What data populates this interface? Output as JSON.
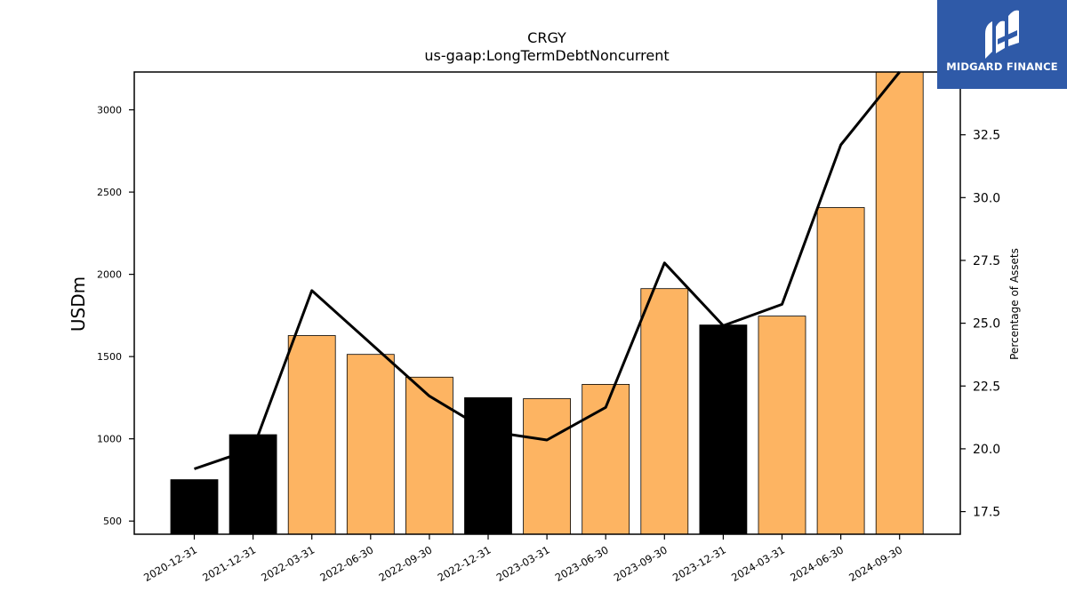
{
  "chart_data": {
    "type": "bar",
    "title": "CRGY",
    "subtitle": "us-gaap:LongTermDebtNoncurrent",
    "ylabel": "USDm",
    "y2label": "Percentage of Assets",
    "categories": [
      "2020-12-31",
      "2021-12-31",
      "2022-03-31",
      "2022-06-30",
      "2022-09-30",
      "2022-12-31",
      "2023-03-31",
      "2023-06-30",
      "2023-09-30",
      "2023-12-31",
      "2024-03-31",
      "2024-06-30",
      "2024-09-30"
    ],
    "series": [
      {
        "type": "bar",
        "axis": "left",
        "values": [
          752,
          1025,
          1628,
          1513,
          1375,
          1250,
          1244,
          1331,
          1913,
          1692,
          1746,
          2406,
          3230
        ],
        "bar_colors": [
          "#000000",
          "#000000",
          "#fdb462",
          "#fdb462",
          "#fdb462",
          "#000000",
          "#fdb462",
          "#fdb462",
          "#fdb462",
          "#000000",
          "#fdb462",
          "#fdb462",
          "#fdb462"
        ]
      },
      {
        "type": "line",
        "axis": "right",
        "color": "#000000",
        "values": [
          19.2,
          20.0,
          26.3,
          24.2,
          22.1,
          20.7,
          20.35,
          21.65,
          27.4,
          24.9,
          25.75,
          32.1,
          35.0
        ]
      }
    ],
    "ylim": [
      420,
      3230
    ],
    "y2lim": [
      16.6,
      35.0
    ],
    "yticks": [
      500,
      1000,
      1500,
      2000,
      2500,
      3000
    ],
    "y2ticks": [
      "17.5",
      "20.0",
      "22.5",
      "25.0",
      "27.5",
      "30.0",
      "32.5"
    ],
    "grid": false,
    "legend": "none"
  },
  "logo": {
    "text": "MIDGARD FINANCE",
    "background": "#2f5aa8"
  }
}
